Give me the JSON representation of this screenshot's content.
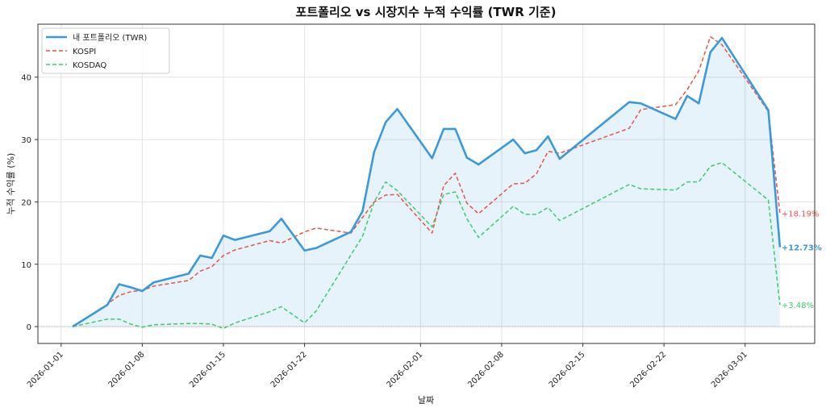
{
  "chart_data": {
    "type": "line",
    "title": "포트폴리오 vs 시장지수 누적 수익률 (TWR 기준)",
    "xlabel": "날짜",
    "ylabel": "누적 수익률 (%)",
    "ylim": [
      -2.7,
      48.5
    ],
    "xlim": [
      "2025-12-30",
      "2026-03-07"
    ],
    "grid": true,
    "legend_position": "top-left",
    "x_ticks": [
      "2026-01-01",
      "2026-01-08",
      "2026-01-15",
      "2026-01-22",
      "2026-02-01",
      "2026-02-08",
      "2026-02-15",
      "2026-02-22",
      "2026-03-01"
    ],
    "y_ticks": [
      0,
      10,
      20,
      30,
      40
    ],
    "x": [
      "2026-01-02",
      "2026-01-05",
      "2026-01-06",
      "2026-01-07",
      "2026-01-08",
      "2026-01-09",
      "2026-01-12",
      "2026-01-13",
      "2026-01-14",
      "2026-01-15",
      "2026-01-16",
      "2026-01-19",
      "2026-01-20",
      "2026-01-22",
      "2026-01-23",
      "2026-01-26",
      "2026-01-27",
      "2026-01-28",
      "2026-01-29",
      "2026-01-30",
      "2026-02-02",
      "2026-02-03",
      "2026-02-04",
      "2026-02-05",
      "2026-02-06",
      "2026-02-09",
      "2026-02-10",
      "2026-02-11",
      "2026-02-12",
      "2026-02-13",
      "2026-02-19",
      "2026-02-20",
      "2026-02-23",
      "2026-02-24",
      "2026-02-25",
      "2026-02-26",
      "2026-02-27",
      "2026-03-03",
      "2026-03-04"
    ],
    "series": [
      {
        "name": "내 포트폴리오 (TWR)",
        "color": "#3a9ad9",
        "style": "solid",
        "end_label": "+12.73%",
        "values": [
          0,
          3.5,
          6.8,
          6.3,
          5.7,
          7.1,
          8.5,
          11.4,
          11.0,
          14.6,
          13.9,
          15.3,
          17.3,
          12.2,
          12.6,
          15.2,
          18.5,
          28.0,
          32.8,
          34.9,
          27.0,
          31.7,
          31.7,
          27.1,
          26.0,
          30.0,
          27.8,
          28.3,
          30.5,
          26.9,
          36.0,
          35.8,
          33.3,
          37.0,
          35.8,
          44.0,
          46.3,
          34.7,
          12.73
        ]
      },
      {
        "name": "KOSPI",
        "color": "#e8534a",
        "style": "dashed",
        "end_label": "+18.19%",
        "values": [
          0,
          3.6,
          5.0,
          5.6,
          5.8,
          6.5,
          7.4,
          8.9,
          9.6,
          11.4,
          12.3,
          13.8,
          13.4,
          15.2,
          15.8,
          15.0,
          17.5,
          20.0,
          21.1,
          21.2,
          15.0,
          22.6,
          24.6,
          19.8,
          18.1,
          22.9,
          23.0,
          24.5,
          28.1,
          27.8,
          31.8,
          34.8,
          35.6,
          38.0,
          41.0,
          46.5,
          45.2,
          34.5,
          18.19
        ]
      },
      {
        "name": "KOSDAQ",
        "color": "#3ccb6e",
        "style": "dashed",
        "end_label": "+3.48%",
        "values": [
          0,
          1.2,
          1.2,
          0.4,
          -0.1,
          0.3,
          0.5,
          0.5,
          0.4,
          -0.3,
          0.6,
          2.4,
          3.2,
          0.6,
          2.5,
          11.5,
          14.5,
          20.0,
          23.2,
          21.8,
          16.0,
          21.2,
          21.6,
          17.3,
          14.3,
          19.3,
          18.0,
          18.0,
          19.1,
          17.0,
          22.8,
          22.1,
          21.9,
          23.2,
          23.2,
          25.7,
          26.3,
          20.3,
          3.48
        ]
      }
    ]
  }
}
